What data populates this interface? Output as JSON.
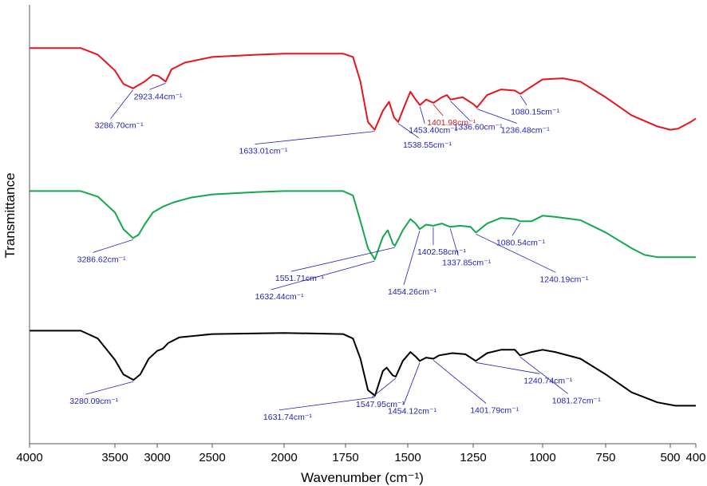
{
  "chart_data": {
    "type": "line",
    "title": "",
    "xlabel": "Wavenumber (cm⁻¹)",
    "ylabel": "Transmittance",
    "xlim": [
      4000,
      400
    ],
    "x_reversed": true,
    "x_ticks": [
      4000,
      3500,
      3000,
      2500,
      2000,
      1750,
      1500,
      1250,
      1000,
      750,
      500,
      400
    ],
    "x_tick_labels": [
      "4000",
      "3500",
      "3000",
      "2500",
      "2000",
      "1750",
      "1500",
      "1250",
      "1000",
      "750",
      "500",
      "400"
    ],
    "y_ticks": false,
    "grid": false,
    "legend": "none",
    "annotation_color": "#1f1fb4",
    "series": [
      {
        "name": "red",
        "color": "#e8141b",
        "offset": 2.0,
        "points": [
          [
            4000,
            0.92
          ],
          [
            3700,
            0.92
          ],
          [
            3600,
            0.86
          ],
          [
            3500,
            0.72
          ],
          [
            3400,
            0.6
          ],
          [
            3286.7,
            0.56
          ],
          [
            3150,
            0.62
          ],
          [
            3050,
            0.68
          ],
          [
            2990,
            0.67
          ],
          [
            2923.44,
            0.62
          ],
          [
            2870,
            0.73
          ],
          [
            2750,
            0.79
          ],
          [
            2500,
            0.84
          ],
          [
            2200,
            0.86
          ],
          [
            2000,
            0.87
          ],
          [
            1760,
            0.87
          ],
          [
            1720,
            0.84
          ],
          [
            1690,
            0.62
          ],
          [
            1660,
            0.26
          ],
          [
            1633.01,
            0.19
          ],
          [
            1600,
            0.36
          ],
          [
            1575,
            0.44
          ],
          [
            1555,
            0.3
          ],
          [
            1538.55,
            0.26
          ],
          [
            1510,
            0.42
          ],
          [
            1490,
            0.53
          ],
          [
            1470,
            0.46
          ],
          [
            1453.4,
            0.41
          ],
          [
            1430,
            0.46
          ],
          [
            1401.98,
            0.43
          ],
          [
            1370,
            0.48
          ],
          [
            1350,
            0.5
          ],
          [
            1336.6,
            0.46
          ],
          [
            1290,
            0.48
          ],
          [
            1250,
            0.42
          ],
          [
            1236.48,
            0.39
          ],
          [
            1200,
            0.5
          ],
          [
            1150,
            0.55
          ],
          [
            1100,
            0.54
          ],
          [
            1080.15,
            0.51
          ],
          [
            1050,
            0.56
          ],
          [
            1000,
            0.64
          ],
          [
            920,
            0.65
          ],
          [
            850,
            0.62
          ],
          [
            750,
            0.48
          ],
          [
            650,
            0.32
          ],
          [
            550,
            0.22
          ],
          [
            500,
            0.19
          ],
          [
            470,
            0.2
          ],
          [
            420,
            0.26
          ],
          [
            400,
            0.29
          ]
        ],
        "annotations": [
          {
            "label": "3286.70cm⁻¹",
            "x": 3286.7,
            "color": "#1f1fb4"
          },
          {
            "label": "2923.44cm⁻¹",
            "x": 2923.44,
            "color": "#1f1fb4"
          },
          {
            "label": "1633.01cm⁻¹",
            "x": 1633.01,
            "color": "#1f1fb4"
          },
          {
            "label": "1538.55cm⁻¹",
            "x": 1538.55,
            "color": "#1f1fb4"
          },
          {
            "label": "1453.40cm⁻¹",
            "x": 1453.4,
            "color": "#1f1fb4"
          },
          {
            "label": "1401.98cm⁻¹",
            "x": 1401.98,
            "color": "#c02020"
          },
          {
            "label": "1336.60cm⁻¹",
            "x": 1336.6,
            "color": "#1f1fb4"
          },
          {
            "label": "1236.48cm⁻¹",
            "x": 1236.48,
            "color": "#1f1fb4"
          },
          {
            "label": "1080.15cm⁻¹",
            "x": 1080.15,
            "color": "#1f1fb4"
          }
        ]
      },
      {
        "name": "green",
        "color": "#14a84e",
        "offset": 1.0,
        "points": [
          [
            4000,
            0.89
          ],
          [
            3700,
            0.89
          ],
          [
            3600,
            0.84
          ],
          [
            3500,
            0.7
          ],
          [
            3400,
            0.55
          ],
          [
            3286.62,
            0.47
          ],
          [
            3220,
            0.5
          ],
          [
            3150,
            0.59
          ],
          [
            3050,
            0.7
          ],
          [
            2950,
            0.75
          ],
          [
            2850,
            0.79
          ],
          [
            2700,
            0.83
          ],
          [
            2500,
            0.86
          ],
          [
            2200,
            0.88
          ],
          [
            2000,
            0.89
          ],
          [
            1760,
            0.89
          ],
          [
            1720,
            0.85
          ],
          [
            1690,
            0.62
          ],
          [
            1660,
            0.38
          ],
          [
            1632.44,
            0.28
          ],
          [
            1600,
            0.48
          ],
          [
            1580,
            0.54
          ],
          [
            1560,
            0.42
          ],
          [
            1551.71,
            0.4
          ],
          [
            1520,
            0.54
          ],
          [
            1490,
            0.64
          ],
          [
            1470,
            0.6
          ],
          [
            1454.26,
            0.55
          ],
          [
            1430,
            0.59
          ],
          [
            1402.58,
            0.58
          ],
          [
            1370,
            0.6
          ],
          [
            1337.85,
            0.57
          ],
          [
            1300,
            0.58
          ],
          [
            1260,
            0.57
          ],
          [
            1240.19,
            0.52
          ],
          [
            1200,
            0.6
          ],
          [
            1150,
            0.65
          ],
          [
            1100,
            0.64
          ],
          [
            1080.54,
            0.62
          ],
          [
            1040,
            0.62
          ],
          [
            1000,
            0.67
          ],
          [
            950,
            0.66
          ],
          [
            850,
            0.63
          ],
          [
            750,
            0.52
          ],
          [
            650,
            0.38
          ],
          [
            600,
            0.32
          ],
          [
            550,
            0.3
          ],
          [
            500,
            0.3
          ],
          [
            400,
            0.3
          ]
        ],
        "annotations": [
          {
            "label": "3286.62cm⁻¹",
            "x": 3286.62,
            "color": "#1f1fb4"
          },
          {
            "label": "1632.44cm⁻¹",
            "x": 1632.44,
            "color": "#1f1fb4"
          },
          {
            "label": "1551.71cm⁻¹",
            "x": 1551.71,
            "color": "#1f1fb4"
          },
          {
            "label": "1454.26cm⁻¹",
            "x": 1454.26,
            "color": "#1f1fb4"
          },
          {
            "label": "1402.58cm⁻¹",
            "x": 1402.58,
            "color": "#1f1fb4"
          },
          {
            "label": "1337.85cm⁻¹",
            "x": 1337.85,
            "color": "#1f1fb4"
          },
          {
            "label": "1240.19cm⁻¹",
            "x": 1240.19,
            "color": "#1f1fb4"
          },
          {
            "label": "1080.54cm⁻¹",
            "x": 1080.54,
            "color": "#1f1fb4"
          }
        ]
      },
      {
        "name": "black",
        "color": "#000000",
        "offset": 0.0,
        "points": [
          [
            4000,
            0.89
          ],
          [
            3700,
            0.89
          ],
          [
            3600,
            0.82
          ],
          [
            3500,
            0.63
          ],
          [
            3400,
            0.5
          ],
          [
            3280.09,
            0.45
          ],
          [
            3200,
            0.5
          ],
          [
            3100,
            0.64
          ],
          [
            3000,
            0.71
          ],
          [
            2950,
            0.73
          ],
          [
            2900,
            0.78
          ],
          [
            2800,
            0.83
          ],
          [
            2500,
            0.86
          ],
          [
            2000,
            0.87
          ],
          [
            1760,
            0.86
          ],
          [
            1720,
            0.82
          ],
          [
            1690,
            0.64
          ],
          [
            1660,
            0.36
          ],
          [
            1631.74,
            0.31
          ],
          [
            1600,
            0.53
          ],
          [
            1585,
            0.56
          ],
          [
            1560,
            0.49
          ],
          [
            1547.95,
            0.48
          ],
          [
            1520,
            0.62
          ],
          [
            1490,
            0.7
          ],
          [
            1470,
            0.66
          ],
          [
            1454.12,
            0.62
          ],
          [
            1430,
            0.65
          ],
          [
            1401.79,
            0.64
          ],
          [
            1380,
            0.67
          ],
          [
            1330,
            0.69
          ],
          [
            1280,
            0.68
          ],
          [
            1240.74,
            0.62
          ],
          [
            1200,
            0.69
          ],
          [
            1150,
            0.72
          ],
          [
            1100,
            0.72
          ],
          [
            1081.27,
            0.67
          ],
          [
            1040,
            0.7
          ],
          [
            1000,
            0.72
          ],
          [
            950,
            0.7
          ],
          [
            850,
            0.64
          ],
          [
            750,
            0.5
          ],
          [
            650,
            0.34
          ],
          [
            550,
            0.25
          ],
          [
            480,
            0.22
          ],
          [
            400,
            0.22
          ]
        ],
        "annotations": [
          {
            "label": "3280.09cm⁻¹",
            "x": 3280.09,
            "color": "#1f1fb4"
          },
          {
            "label": "1631.74cm⁻¹",
            "x": 1631.74,
            "color": "#1f1fb4"
          },
          {
            "label": "1547.95cm⁻¹",
            "x": 1547.95,
            "color": "#1f1fb4"
          },
          {
            "label": "1454.12cm⁻¹",
            "x": 1454.12,
            "color": "#1f1fb4"
          },
          {
            "label": "1401.79cm⁻¹",
            "x": 1401.79,
            "color": "#1f1fb4"
          },
          {
            "label": "1240.74cm⁻¹",
            "x": 1240.74,
            "color": "#1f1fb4"
          },
          {
            "label": "1081.27cm⁻¹",
            "x": 1081.27,
            "color": "#1f1fb4"
          }
        ]
      }
    ]
  }
}
